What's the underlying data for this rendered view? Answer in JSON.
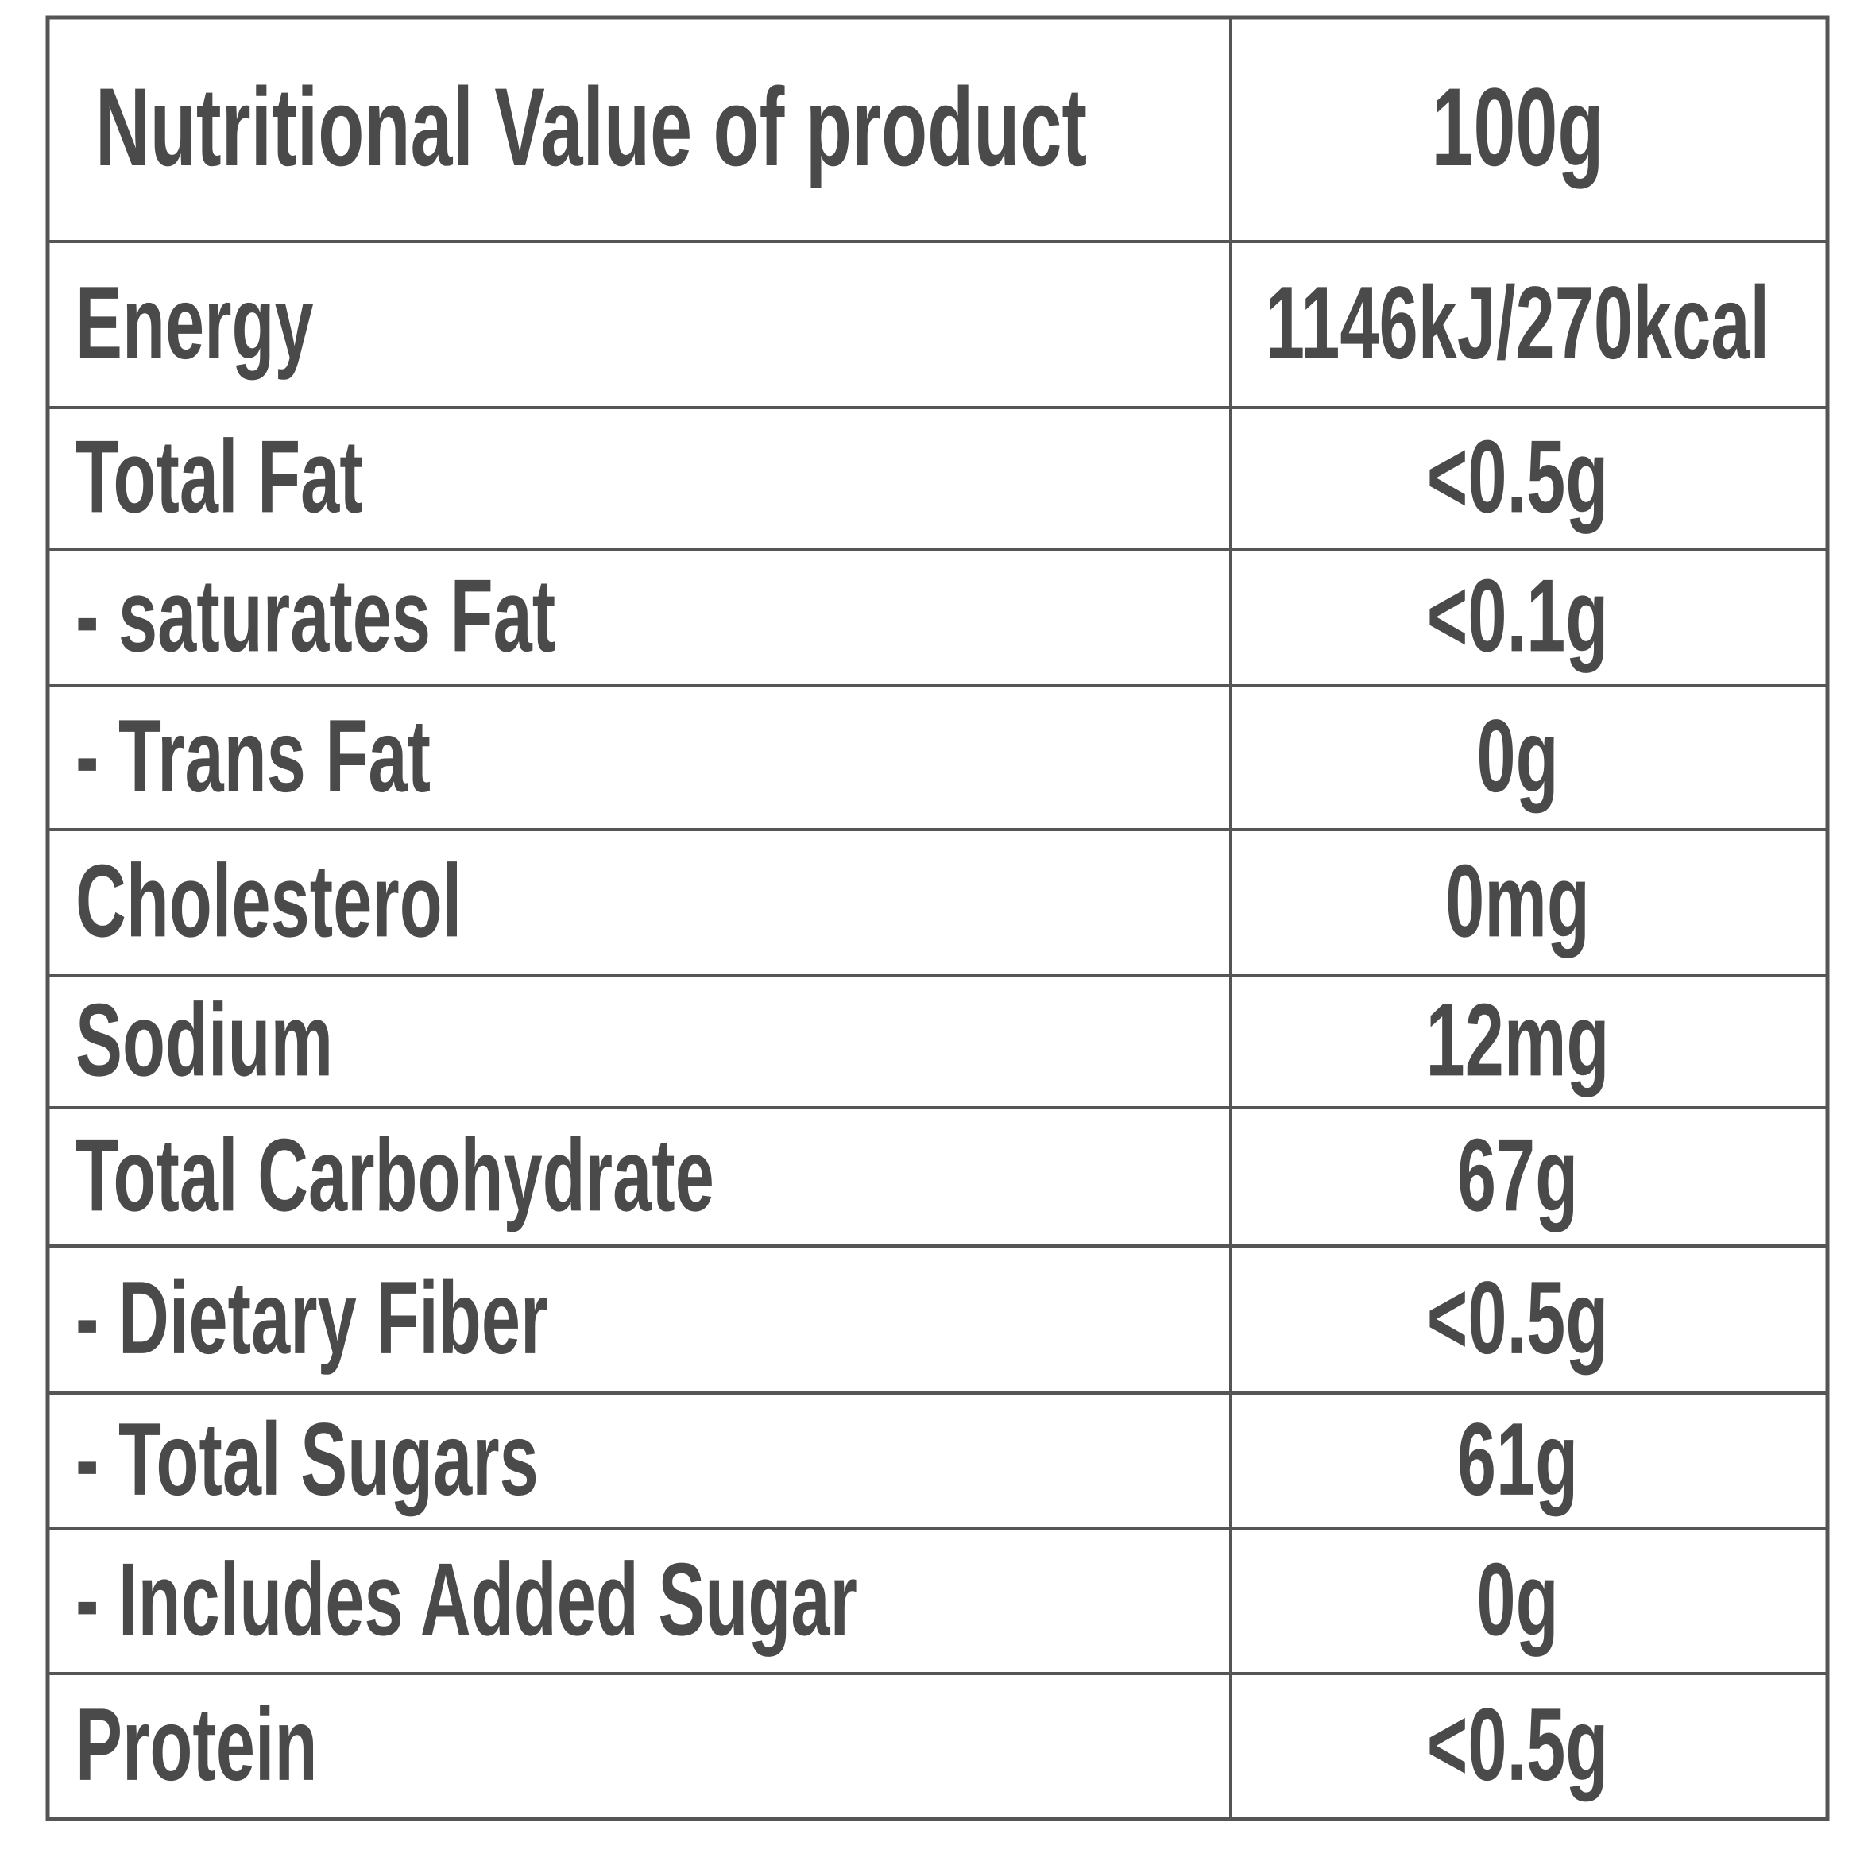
{
  "table": {
    "header": [
      "Nutritional Value of product",
      "100g"
    ],
    "rows": [
      [
        "Energy",
        "1146kJ/270kcal"
      ],
      [
        "Total Fat",
        "<0.5g"
      ],
      [
        "- saturates Fat",
        "<0.1g"
      ],
      [
        "- Trans Fat",
        "0g"
      ],
      [
        "Cholesterol",
        "0mg"
      ],
      [
        "Sodium",
        "12mg"
      ],
      [
        "Total Carbohydrate",
        "67g"
      ],
      [
        "- Dietary Fiber",
        "<0.5g"
      ],
      [
        "- Total Sugars",
        "61g"
      ],
      [
        "- Includes Added Sugar",
        "0g"
      ],
      [
        "Protein",
        "<0.5g"
      ]
    ]
  }
}
